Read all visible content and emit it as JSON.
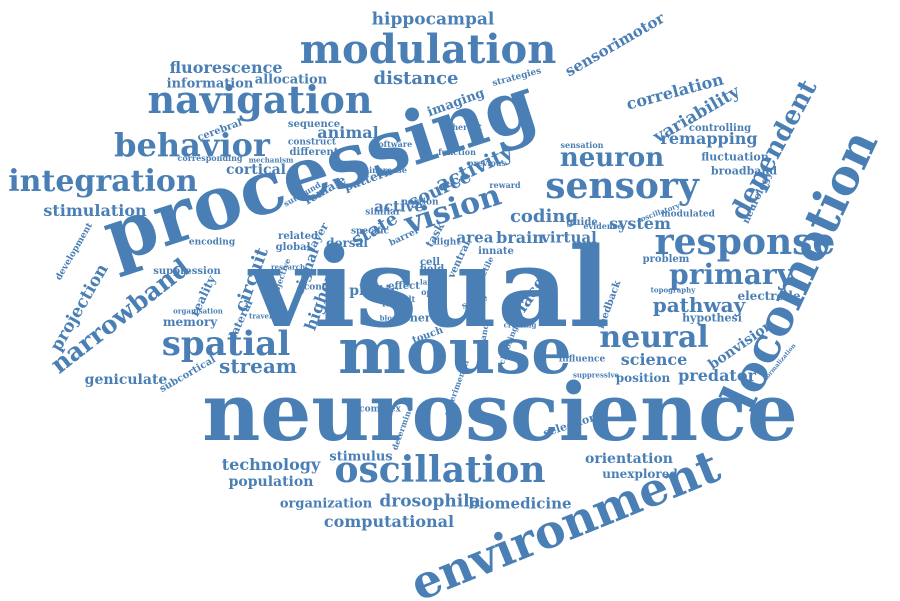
{
  "color": "#4a7fb5",
  "words": [
    "neuroscience",
    "visual",
    "processing",
    "mouse",
    "locomotion",
    "environment",
    "modulation",
    "navigation",
    "response",
    "oscillation",
    "spatial",
    "sensory",
    "neuron",
    "integration",
    "behavior",
    "neural",
    "primary",
    "vision",
    "dependent",
    "hippocampal",
    "sensorimotor",
    "fluorescence",
    "information",
    "allocation",
    "distance",
    "correlation",
    "variability",
    "remapping",
    "controlling",
    "fluctuation",
    "broadband",
    "stimulation",
    "cortical",
    "cerebral",
    "animal",
    "sequence",
    "construct",
    "different",
    "mechanism",
    "corresponding",
    "strategies",
    "imaging",
    "coherent",
    "sensation",
    "software",
    "function",
    "activity",
    "source",
    "active",
    "state",
    "circuit",
    "area",
    "brain",
    "virtual",
    "coding",
    "system",
    "neurology",
    "pathway",
    "electrode",
    "hypothesi",
    "bonvision",
    "science",
    "predator",
    "position",
    "projection",
    "narrowband",
    "memory",
    "reality",
    "lateral",
    "stream",
    "geniculate",
    "subcortical",
    "technology",
    "population",
    "organization",
    "drosophila",
    "biomedicine",
    "computational",
    "orientation",
    "unexplored",
    "stimulus",
    "selection",
    "complex",
    "determine",
    "influence",
    "suppressive",
    "feedback",
    "guide",
    "evidence",
    "modulated",
    "oscillatory",
    "problem",
    "topography",
    "normalization",
    "suppression",
    "encoding",
    "development",
    "related",
    "global",
    "layer",
    "dorsal",
    "signal",
    "higher",
    "photic",
    "factor",
    "effect",
    "field",
    "cell",
    "place",
    "nerve",
    "touch",
    "spike",
    "innate",
    "result",
    "pattern",
    "female",
    "surround",
    "subjective",
    "specific",
    "similar",
    "flight",
    "ventral",
    "task",
    "increase",
    "portion",
    "barrel",
    "reward",
    "previous",
    "control",
    "traveled",
    "organisation",
    "creating",
    "choosing",
    "experimental",
    "enhance",
    "tactile",
    "blocked",
    "research",
    "larger",
    "open"
  ]
}
